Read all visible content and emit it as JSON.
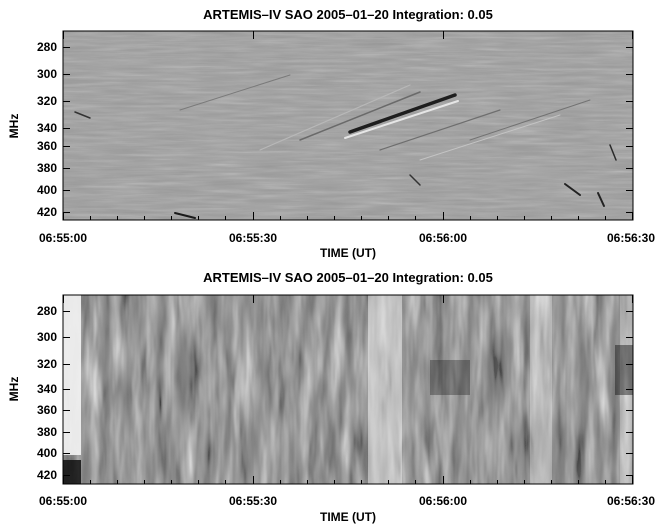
{
  "panels": [
    {
      "title": "ARTEMIS–IV  SAO 2005–01–20   Integration: 0.05",
      "ylabel": "MHz",
      "xlabel": "TIME (UT)",
      "image_kind": "dynamic spectrum (background-subtracted, fine structure)",
      "colormap": "grayscale"
    },
    {
      "title": "ARTEMIS–IV  SAO 2005–01–20   Integration: 0.05",
      "ylabel": "MHz",
      "xlabel": "TIME (UT)",
      "image_kind": "dynamic spectrum (raw intensity)",
      "colormap": "grayscale"
    }
  ],
  "chart_data": [
    {
      "type": "heatmap",
      "title": "ARTEMIS–IV  SAO 2005–01–20   Integration: 0.05",
      "xlabel": "TIME (UT)",
      "ylabel": "MHz",
      "x_ticks": [
        "06:55:00",
        "06:55:30",
        "06:56:00",
        "06:56:30"
      ],
      "x_range": [
        "06:55:00",
        "06:56:30"
      ],
      "y_ticks": [
        280,
        300,
        320,
        340,
        360,
        380,
        400,
        420
      ],
      "y_range": [
        270,
        431
      ],
      "y_inverted": true,
      "colormap": "grayscale"
    },
    {
      "type": "heatmap",
      "title": "ARTEMIS–IV  SAO 2005–01–20   Integration: 0.05",
      "xlabel": "TIME (UT)",
      "ylabel": "MHz",
      "x_ticks": [
        "06:55:00",
        "06:55:30",
        "06:56:00",
        "06:56:30"
      ],
      "x_range": [
        "06:55:00",
        "06:56:30"
      ],
      "y_ticks": [
        280,
        300,
        320,
        340,
        360,
        380,
        400,
        420
      ],
      "y_range": [
        270,
        431
      ],
      "y_inverted": true,
      "colormap": "grayscale"
    }
  ]
}
